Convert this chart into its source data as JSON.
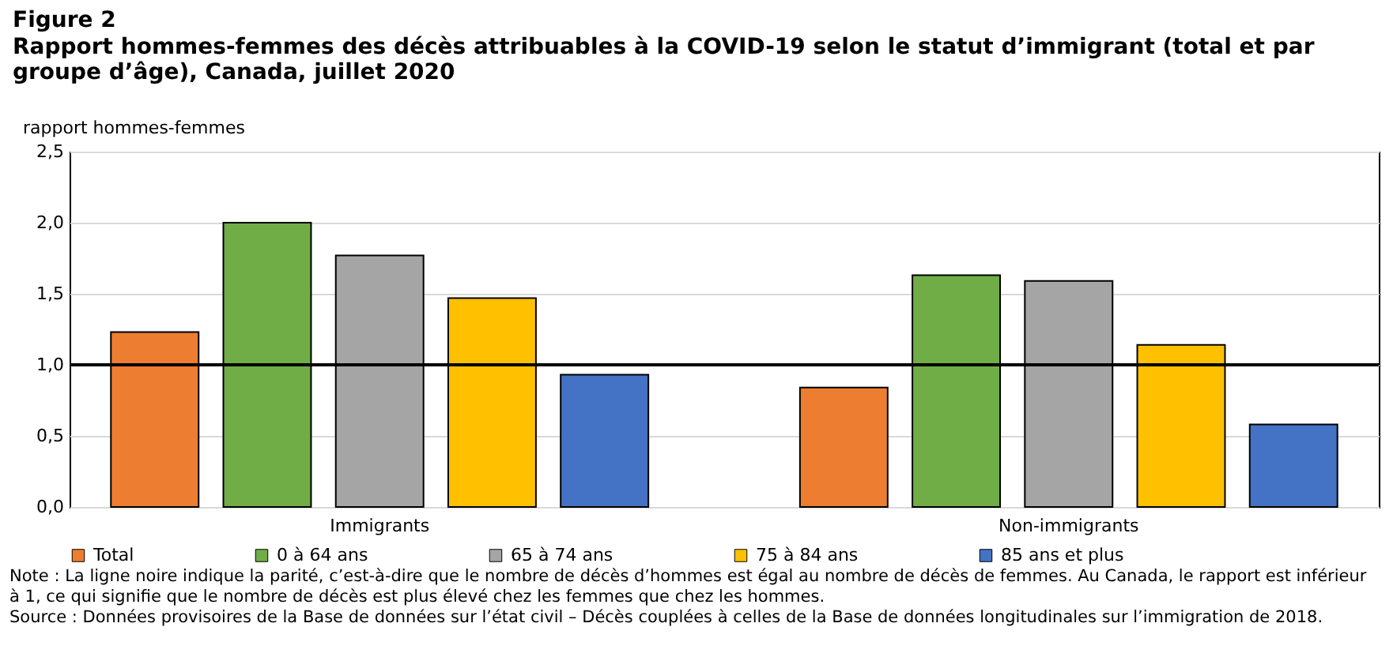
{
  "chart_data": {
    "type": "bar",
    "title": "Figure 2",
    "subtitle": "Rapport hommes-femmes des décès attribuables à la COVID-19 selon le statut d’immigrant (total et par\ngroupe d’âge), Canada, juillet 2020",
    "ylabel": "rapport hommes-femmes",
    "categories": [
      "Immigrants",
      "Non-immigrants"
    ],
    "series": [
      {
        "name": "Total",
        "color": "#ed7d31",
        "values": [
          1.23,
          0.84
        ]
      },
      {
        "name": "0 à 64 ans",
        "color": "#70ad47",
        "values": [
          2.0,
          1.63
        ]
      },
      {
        "name": "65 à 74 ans",
        "color": "#a5a5a5",
        "values": [
          1.77,
          1.59
        ]
      },
      {
        "name": "75 à 84 ans",
        "color": "#ffc000",
        "values": [
          1.47,
          1.14
        ]
      },
      {
        "name": "85 ans et plus",
        "color": "#4472c4",
        "values": [
          0.93,
          0.58
        ]
      }
    ],
    "ylim": [
      0,
      2.5
    ],
    "yticks": [
      {
        "value": 0,
        "label": "0,0"
      },
      {
        "value": 0.5,
        "label": "0,5"
      },
      {
        "value": 1,
        "label": "1,0"
      },
      {
        "value": 1.5,
        "label": "1,5"
      },
      {
        "value": 2,
        "label": "2,0"
      },
      {
        "value": 2.5,
        "label": "2,5"
      }
    ],
    "grid": "y",
    "legend": "bottom",
    "ref_lines": [
      {
        "axis": "y",
        "value": 1,
        "color": "#000000"
      }
    ],
    "annotations": [
      "Note : La ligne noire indique la parité, c’est-à-dire que le nombre de décès d’hommes est égal au nombre de décès de femmes. Au Canada, le rapport est inférieur à 1, ce qui signifie que le nombre de décès est plus élevé chez les femmes que chez les hommes.",
      "Source : Données provisoires de la Base de données sur l’état civil – Décès couplées à celles de la Base de données longitudinales sur l’immigration de 2018."
    ]
  }
}
